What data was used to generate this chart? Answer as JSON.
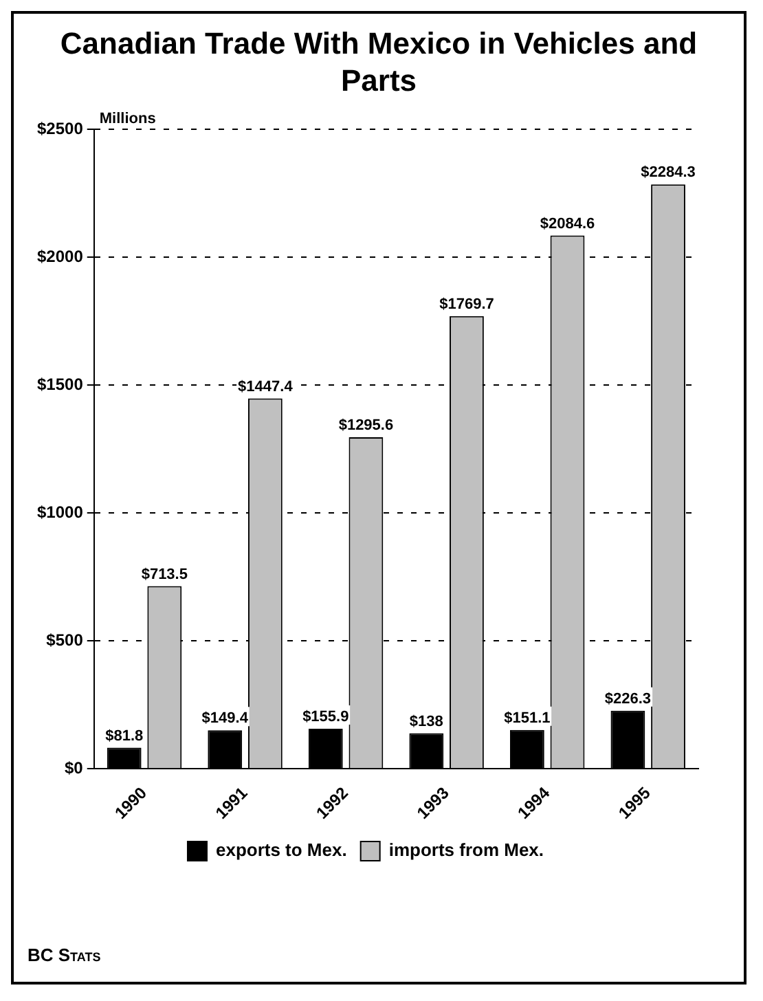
{
  "chart_data": {
    "type": "bar",
    "title": "Canadian Trade With Mexico in Vehicles and Parts",
    "ylabel": "Millions",
    "categories": [
      "1990",
      "1991",
      "1992",
      "1993",
      "1994",
      "1995"
    ],
    "series": [
      {
        "name": "exports to Mex.",
        "color": "#000000",
        "values": [
          81.8,
          149.4,
          155.9,
          138,
          151.1,
          226.3
        ],
        "value_labels": [
          "$81.8",
          "$149.4",
          "$155.9",
          "$138",
          "$151.1",
          "$226.3"
        ]
      },
      {
        "name": "imports from Mex.",
        "color": "#c0c0c0",
        "values": [
          713.5,
          1447.4,
          1295.6,
          1769.7,
          2084.6,
          2284.3
        ],
        "value_labels": [
          "$713.5",
          "$1447.4",
          "$1295.6",
          "$1769.7",
          "$2084.6",
          "$2284.3"
        ]
      }
    ],
    "ylim": [
      0,
      2500
    ],
    "yticks": [
      {
        "value": 0,
        "label": "$0"
      },
      {
        "value": 500,
        "label": "$500"
      },
      {
        "value": 1000,
        "label": "$1000"
      },
      {
        "value": 1500,
        "label": "$1500"
      },
      {
        "value": 2000,
        "label": "$2000"
      },
      {
        "value": 2500,
        "label": "$2500"
      }
    ],
    "grid": "y",
    "legend": "bottom",
    "annotations": [
      "BC Stats"
    ]
  }
}
